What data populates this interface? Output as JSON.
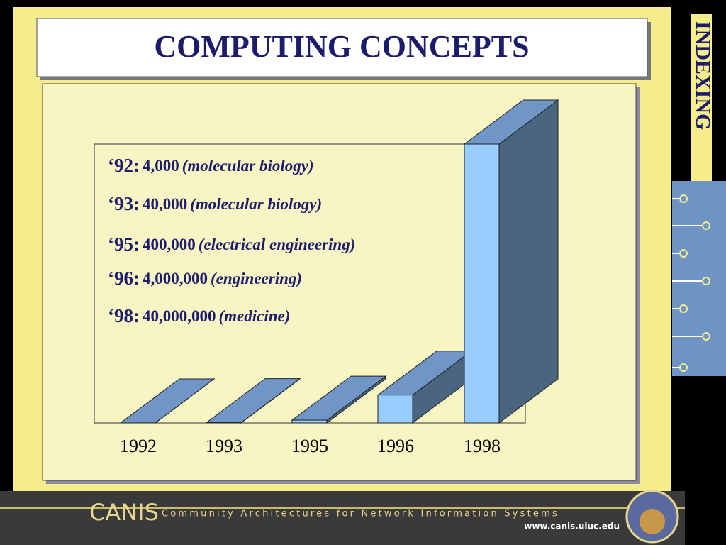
{
  "slide_title": "COMPUTING CONCEPTS",
  "side_label": "INDEXING",
  "footer": {
    "brand": "CANIS",
    "tagline": "Community Architectures for Network Information Systems",
    "url": "www.canis.uiuc.edu"
  },
  "chart_data": {
    "type": "bar3d",
    "categories": [
      "1992",
      "1993",
      "1995",
      "1996",
      "1998"
    ],
    "values": [
      4000,
      40000,
      400000,
      4000000,
      40000000
    ],
    "value_labels": [
      "4,000",
      "40,000",
      "400,000",
      "4,000,000",
      "40,000,000"
    ],
    "label_prefixes": [
      "‘92:",
      "‘93:",
      "‘95:",
      "‘96:",
      "‘98:"
    ],
    "label_fields": [
      "(molecular biology)",
      "(molecular biology)",
      "(electrical engineering)",
      "(engineering)",
      "(medicine)"
    ],
    "ylim": [
      0,
      40000000
    ],
    "color": "#99ccff"
  }
}
